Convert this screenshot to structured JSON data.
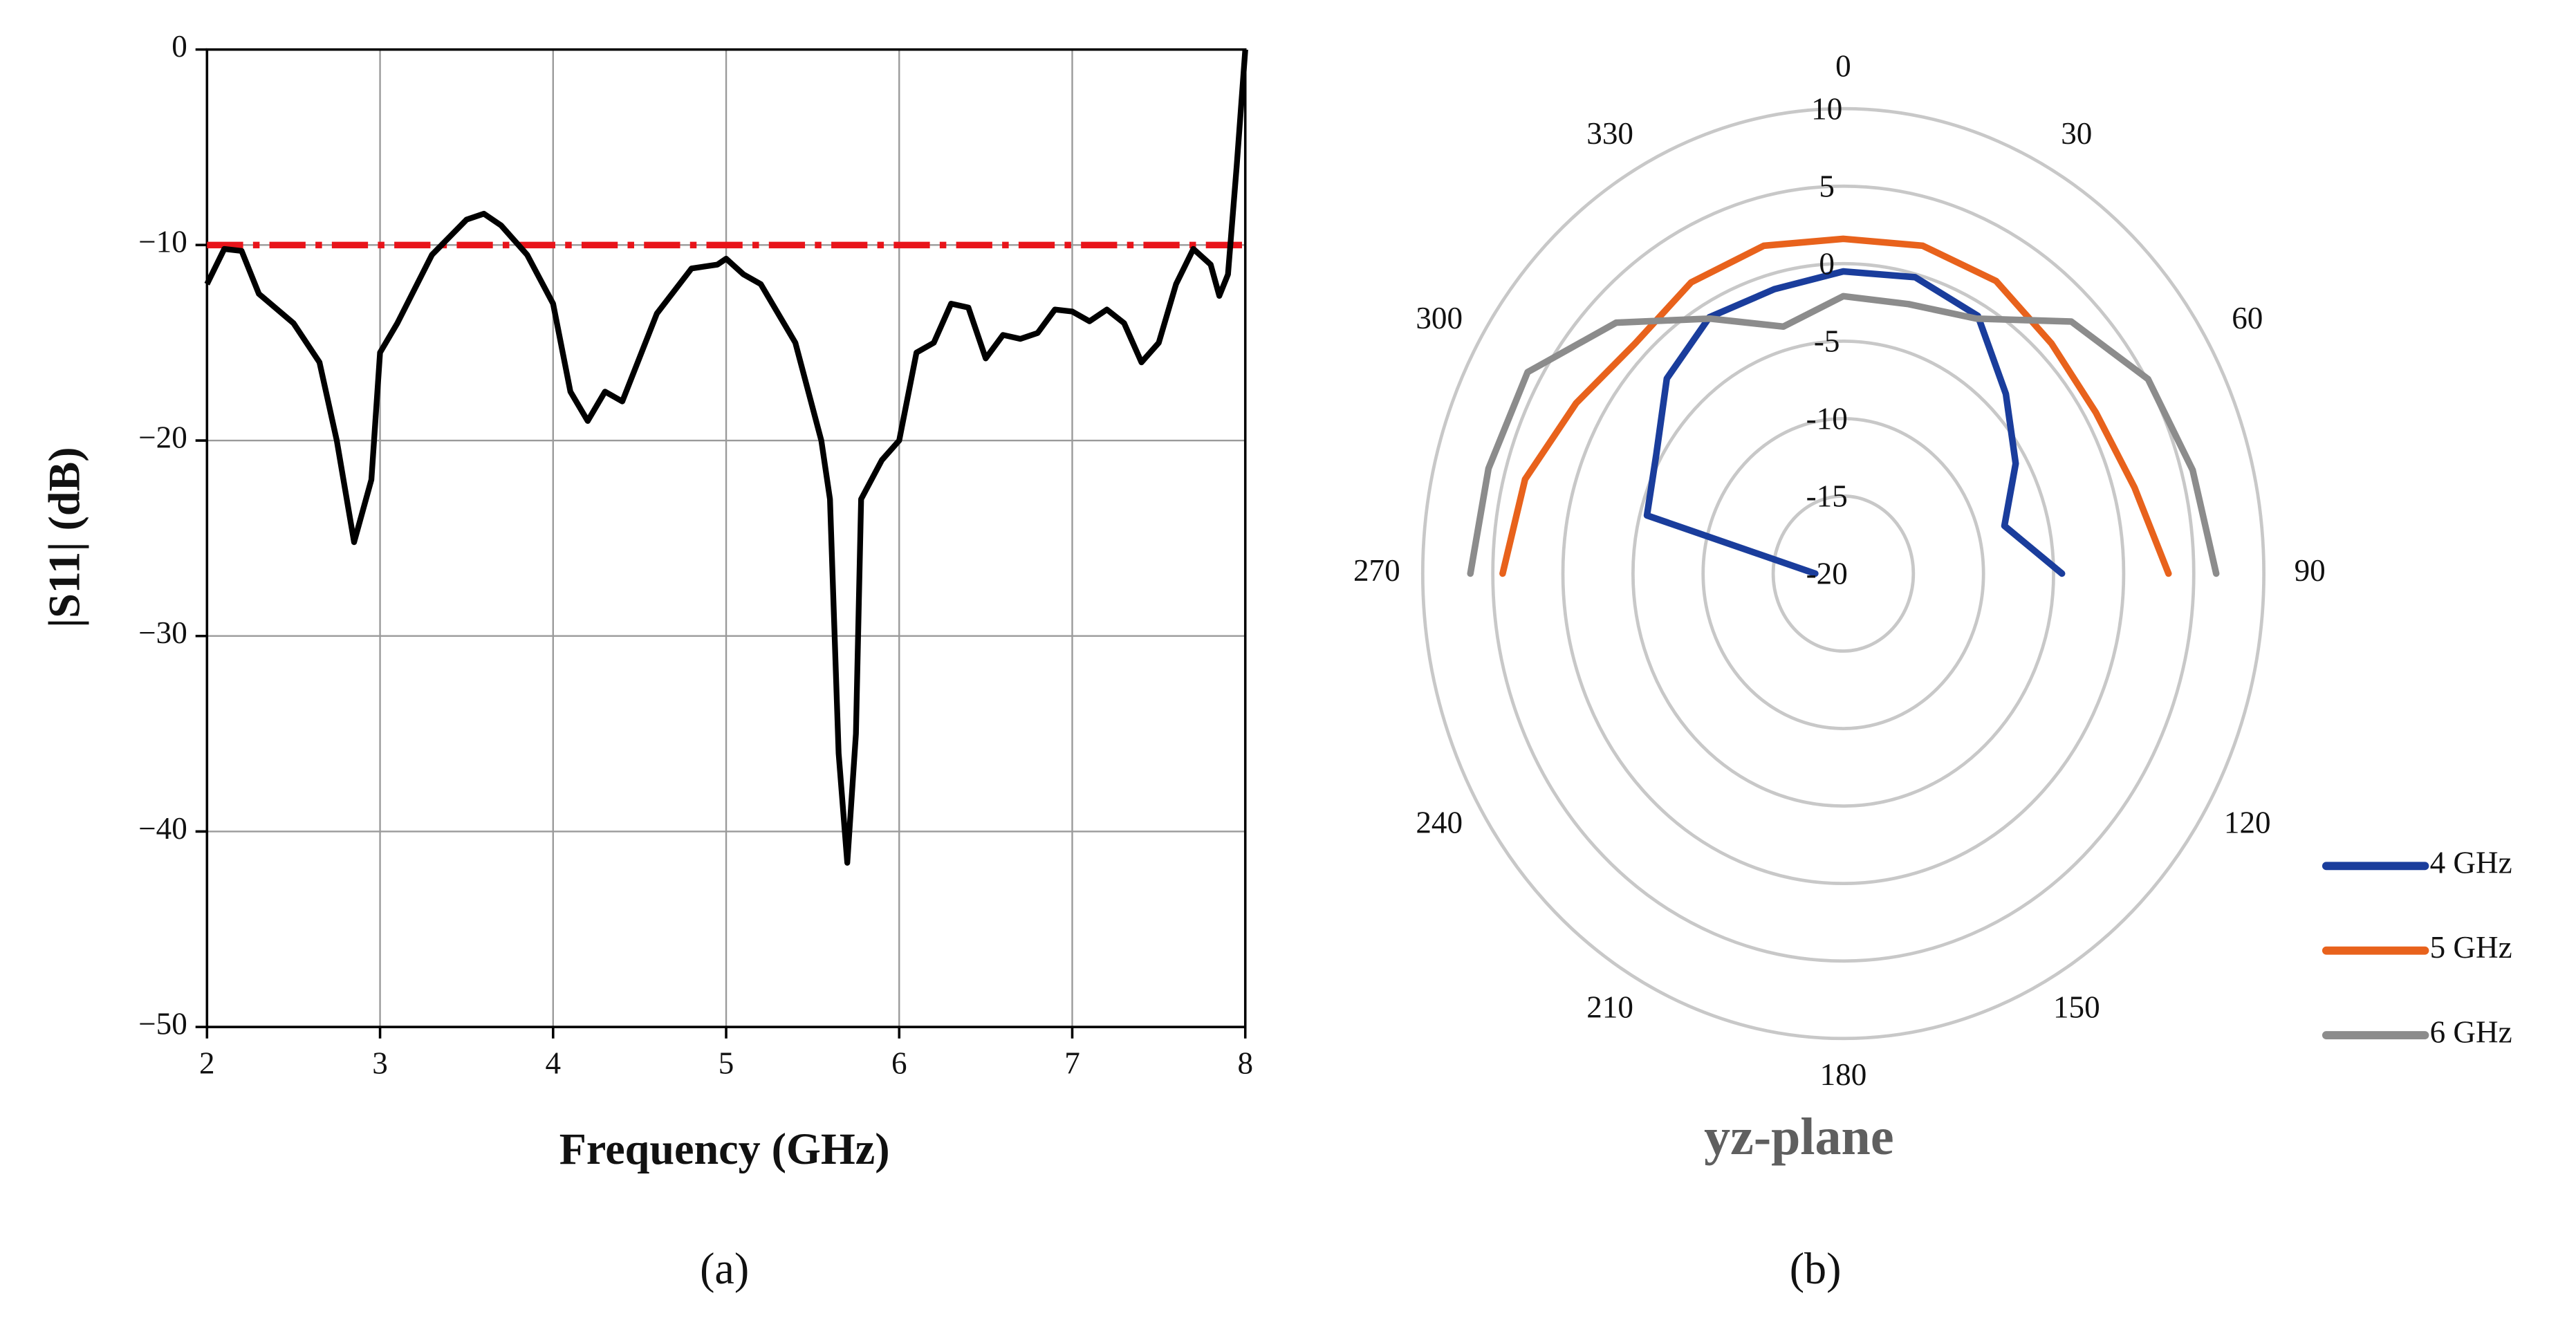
{
  "chart_data": [
    {
      "type": "line",
      "x": [
        2.0,
        2.1,
        2.2,
        2.3,
        2.5,
        2.65,
        2.75,
        2.85,
        2.95,
        3.0,
        3.1,
        3.3,
        3.5,
        3.6,
        3.7,
        3.85,
        4.0,
        4.1,
        4.2,
        4.3,
        4.4,
        4.6,
        4.8,
        4.95,
        5.0,
        5.1,
        5.2,
        5.4,
        5.55,
        5.6,
        5.65,
        5.7,
        5.75,
        5.78,
        5.9,
        6.0,
        6.1,
        6.2,
        6.3,
        6.4,
        6.5,
        6.6,
        6.7,
        6.8,
        6.9,
        7.0,
        7.1,
        7.2,
        7.3,
        7.4,
        7.5,
        7.6,
        7.7,
        7.8,
        7.85,
        7.9,
        7.95,
        8.0
      ],
      "series": [
        {
          "color": "#000000",
          "values": [
            -12,
            -10.2,
            -10.3,
            -12.5,
            -14,
            -16,
            -20,
            -25.2,
            -22,
            -15.5,
            -14,
            -10.5,
            -8.7,
            -8.4,
            -9,
            -10.5,
            -13,
            -17.5,
            -19,
            -17.5,
            -18,
            -13.5,
            -11.2,
            -11,
            -10.7,
            -11.5,
            -12,
            -15,
            -20,
            -23,
            -36,
            -41.6,
            -35,
            -23,
            -21,
            -20,
            -15.5,
            -15,
            -13,
            -13.2,
            -15.8,
            -14.6,
            -14.8,
            -14.5,
            -13.3,
            -13.4,
            -13.9,
            -13.3,
            -14,
            -16,
            -15,
            -12,
            -10.2,
            -11,
            -12.6,
            -11.5,
            -6,
            0
          ]
        }
      ],
      "hline": {
        "value": -10,
        "color": "#e8141a"
      },
      "xlabel": "Frequency (GHz)",
      "ylabel": "|S11| (dB)",
      "xlim": [
        2,
        8
      ],
      "xticks": [
        2,
        3,
        4,
        5,
        6,
        7,
        8
      ],
      "ylim": [
        -50,
        0
      ],
      "yticks": [
        0,
        {
          "value": -10,
          "label": "−10"
        },
        {
          "value": -20,
          "label": "−20"
        },
        {
          "value": -30,
          "label": "−30"
        },
        {
          "value": -40,
          "label": "−40"
        },
        {
          "value": -50,
          "label": "−50"
        }
      ],
      "grid": true,
      "caption": "(a)"
    },
    {
      "type": "polar",
      "title": "yz-plane",
      "theta": [
        270,
        285,
        300,
        315,
        330,
        345,
        0,
        15,
        30,
        45,
        60,
        75,
        90
      ],
      "series": [
        {
          "name": "4 GHz",
          "color": "#1a3d9c",
          "values": [
            -18,
            -5.5,
            -4.6,
            -2.2,
            -0.9,
            -1,
            -0.5,
            -0.2,
            -0.8,
            -3.6,
            -5.8,
            -8.1,
            -4.4
          ]
        },
        {
          "name": "5 GHz",
          "color": "#e8621c",
          "values": [
            4.3,
            3.5,
            2.0,
            1.0,
            1.7,
            1.9,
            1.6,
            1.9,
            1.8,
            1.0,
            0.8,
            1.5,
            3.2
          ]
        },
        {
          "name": "6 GHz",
          "color": "#8c8c8c",
          "values": [
            6.6,
            6.2,
            6.0,
            2.9,
            -1.0,
            -3.5,
            -2.1,
            -2.0,
            -1.0,
            3.0,
            5.1,
            5.8,
            6.6
          ]
        }
      ],
      "rlim": [
        -20,
        10
      ],
      "rticks": [
        -20,
        -15,
        -10,
        -5,
        0,
        5,
        10
      ],
      "thetaticks": [
        0,
        30,
        60,
        90,
        120,
        150,
        180,
        210,
        240,
        270,
        300,
        330
      ],
      "legend": "lower right",
      "caption": "(b)"
    }
  ]
}
